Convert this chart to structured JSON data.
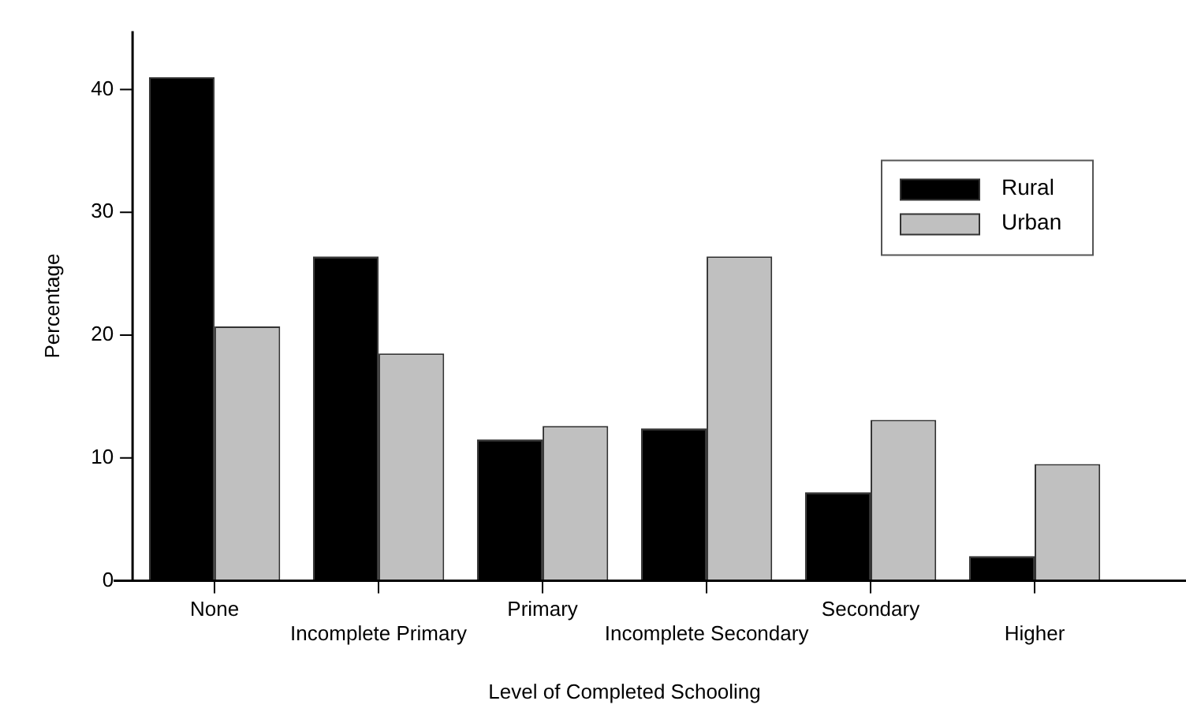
{
  "chart_data": {
    "type": "bar",
    "xlabel": "Level of Completed Schooling",
    "ylabel": "Percentage",
    "categories": [
      "None",
      "Incomplete Primary",
      "Primary",
      "Incomplete Secondary",
      "Secondary",
      "Higher"
    ],
    "series": [
      {
        "name": "Rural",
        "color": "#000000",
        "values": [
          41,
          26.4,
          11.5,
          12.4,
          7.2,
          2.0
        ]
      },
      {
        "name": "Urban",
        "color": "#c0c0c0",
        "values": [
          20.7,
          18.5,
          12.6,
          26.4,
          13.1,
          9.5
        ]
      }
    ],
    "ylim": [
      0,
      44.75
    ],
    "yticks": [
      0,
      10,
      20,
      30,
      40
    ],
    "grid": false,
    "legend": "top right"
  }
}
